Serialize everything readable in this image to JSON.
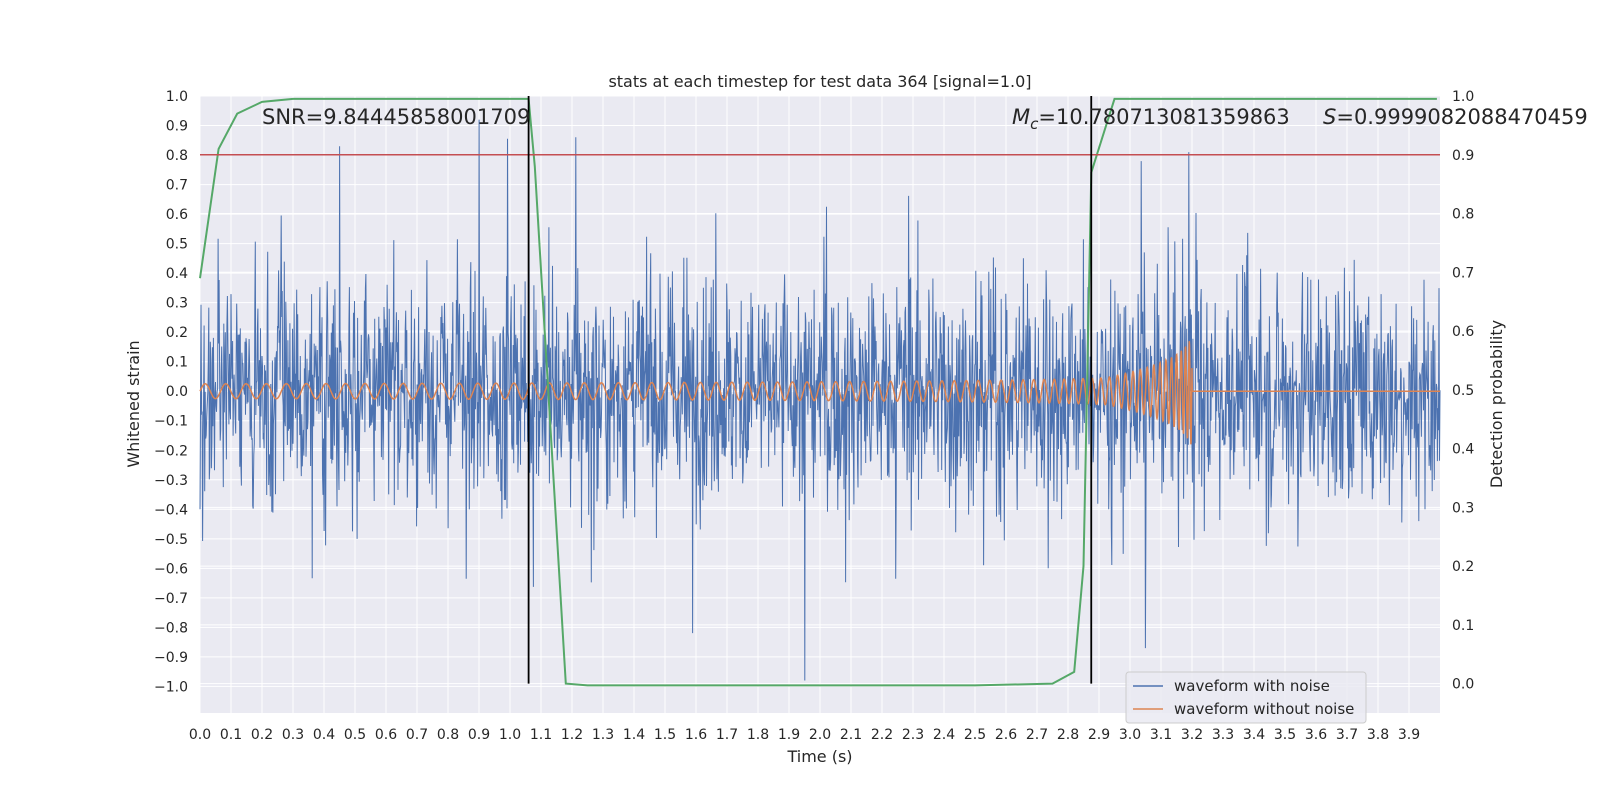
{
  "chart_data": {
    "type": "line",
    "title": "stats at each timestep for test data 364 [signal=1.0]",
    "xlabel": "Time (s)",
    "ylabel": "Whitened strain",
    "y2label": "Detection probability",
    "xlim": [
      0.0,
      4.0
    ],
    "ylim": [
      -1.09,
      1.0
    ],
    "y2lim": [
      -0.05,
      1.0
    ],
    "x_ticks": [
      "0.0",
      "0.1",
      "0.2",
      "0.3",
      "0.4",
      "0.5",
      "0.6",
      "0.7",
      "0.8",
      "0.9",
      "1.0",
      "1.1",
      "1.2",
      "1.3",
      "1.4",
      "1.5",
      "1.6",
      "1.7",
      "1.8",
      "1.9",
      "2.0",
      "2.1",
      "2.2",
      "2.3",
      "2.4",
      "2.5",
      "2.6",
      "2.7",
      "2.8",
      "2.9",
      "3.0",
      "3.1",
      "3.2",
      "3.3",
      "3.4",
      "3.5",
      "3.6",
      "3.7",
      "3.8",
      "3.9"
    ],
    "y_ticks": [
      "1.0",
      "0.9",
      "0.8",
      "0.7",
      "0.6",
      "0.5",
      "0.4",
      "0.3",
      "0.2",
      "0.1",
      "0.0",
      "−0.1",
      "−0.2",
      "−0.3",
      "−0.4",
      "−0.5",
      "−0.6",
      "−0.7",
      "−0.8",
      "−0.9",
      "−1.0"
    ],
    "y2_ticks": [
      "1.0",
      "0.9",
      "0.8",
      "0.7",
      "0.6",
      "0.5",
      "0.4",
      "0.3",
      "0.2",
      "0.1",
      "0.0"
    ],
    "annotations": {
      "snr": "SNR=9.84445858001709",
      "mc_symbol": "M",
      "mc_sub": "c",
      "mc_value": "=10.780713081359863",
      "s_symbol": "S",
      "s_value": "=0.9999082088470459"
    },
    "vertical_lines_x": [
      1.06,
      2.875
    ],
    "threshold_y2": 0.9,
    "grid": true,
    "legend_position": "lower-right",
    "legend": [
      "waveform with noise",
      "waveform without noise"
    ],
    "series": [
      {
        "name": "waveform with noise",
        "color": "#4c72b0",
        "axis": "left",
        "description": "dense whitened strain noise, roughly within -0.8..0.9",
        "peaks": [
          [
            0.45,
            0.83
          ],
          [
            0.9,
            0.92
          ],
          [
            1.06,
            0.92
          ],
          [
            1.95,
            -0.98
          ],
          [
            3.05,
            -0.87
          ],
          [
            3.19,
            0.81
          ]
        ]
      },
      {
        "name": "waveform without noise",
        "color": "#dd8452",
        "axis": "left",
        "chirp_end_time": 3.2,
        "amplitude_start": 0.025,
        "amplitude_peak": 0.34
      },
      {
        "name": "detection probability",
        "color": "#55a868",
        "axis": "right",
        "x": [
          0.0,
          0.06,
          0.12,
          0.2,
          0.3,
          0.5,
          1.06,
          1.08,
          1.18,
          1.25,
          2.5,
          2.75,
          2.82,
          2.85,
          2.875,
          2.95,
          3.5,
          3.99
        ],
        "y": [
          0.69,
          0.91,
          0.97,
          0.99,
          0.995,
          0.995,
          0.995,
          0.88,
          0.0,
          -0.003,
          -0.003,
          0.0,
          0.02,
          0.2,
          0.87,
          0.995,
          0.995,
          0.995
        ]
      }
    ]
  }
}
